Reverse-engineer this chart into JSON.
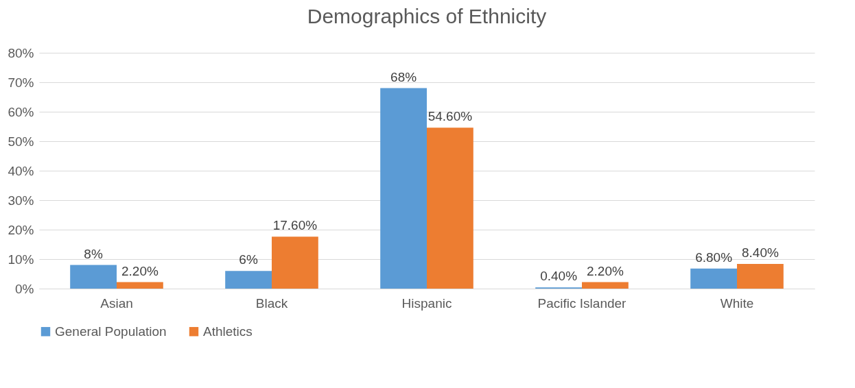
{
  "chart_data": {
    "type": "bar",
    "title": "Demographics of Ethnicity",
    "categories": [
      "Asian",
      "Black",
      "Hispanic",
      "Pacific Islander",
      "White"
    ],
    "series": [
      {
        "name": "General Population",
        "color": "#5b9bd5",
        "values": [
          8,
          6,
          68,
          0.4,
          6.8
        ],
        "value_labels": [
          "8%",
          "6%",
          "68%",
          "0.40%",
          "6.80%"
        ]
      },
      {
        "name": "Athletics",
        "color": "#ed7d31",
        "values": [
          2.2,
          17.6,
          54.6,
          2.2,
          8.4
        ],
        "value_labels": [
          "2.20%",
          "17.60%",
          "54.60%",
          "2.20%",
          "8.40%"
        ]
      }
    ],
    "ylim": [
      0,
      80
    ],
    "yticks": [
      {
        "value": 0,
        "label": "0%"
      },
      {
        "value": 10,
        "label": "10%"
      },
      {
        "value": 20,
        "label": "20%"
      },
      {
        "value": 30,
        "label": "30%"
      },
      {
        "value": 40,
        "label": "40%"
      },
      {
        "value": 50,
        "label": "50%"
      },
      {
        "value": 60,
        "label": "60%"
      },
      {
        "value": 70,
        "label": "70%"
      },
      {
        "value": 80,
        "label": "80%"
      }
    ],
    "grid": "y",
    "legend": "bottom"
  }
}
